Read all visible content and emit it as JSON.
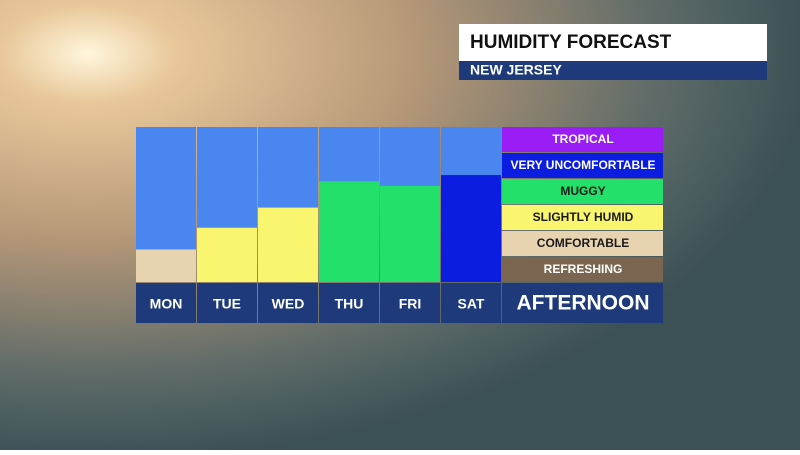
{
  "chart_data": {
    "type": "bar",
    "title": "HUMIDITY FORECAST",
    "subtitle": "NEW JERSEY",
    "categories": [
      "MON",
      "TUE",
      "WED",
      "THU",
      "FRI",
      "SAT"
    ],
    "values": [
      21,
      35,
      48,
      65,
      62,
      69
    ],
    "colors": [
      "#e8d3b0",
      "#f9f56e",
      "#f9f56e",
      "#22e06a",
      "#22e06a",
      "#0b1de0"
    ],
    "ylim": [
      0,
      100
    ],
    "background_color": "#4a86f0",
    "legend": {
      "title": "AFTERNOON",
      "levels": [
        {
          "label": "TROPICAL",
          "color": "#9b1df5"
        },
        {
          "label": "VERY UNCOMFORTABLE",
          "color": "#0b1de0"
        },
        {
          "label": "MUGGY",
          "color": "#22e06a"
        },
        {
          "label": "SLIGHTLY HUMID",
          "color": "#f9f56e"
        },
        {
          "label": "COMFORTABLE",
          "color": "#e8d3b0"
        },
        {
          "label": "REFRESHING",
          "color": "#7a6650"
        }
      ]
    }
  }
}
